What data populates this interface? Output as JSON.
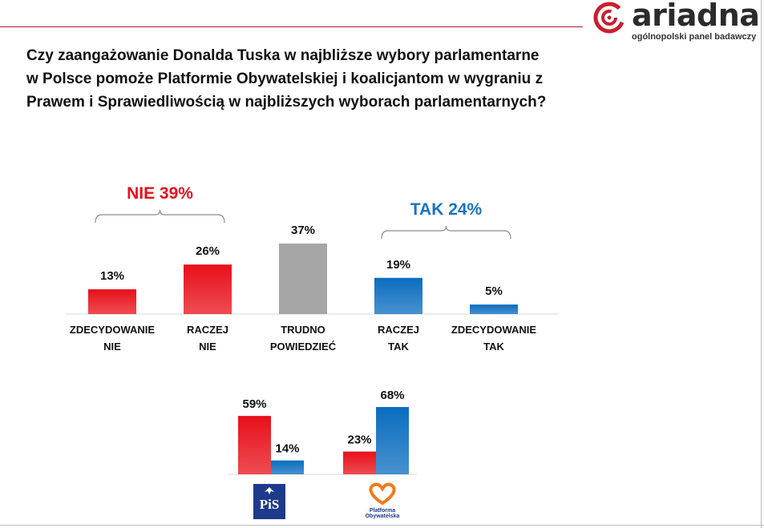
{
  "logo": {
    "name": "ariadna",
    "tagline": "ogólnopolski panel badawczy"
  },
  "title_lines": [
    "Czy zaangażowanie Donalda Tuska w najbliższe wybory parlamentarne",
    "w Polsce pomoże Platformie Obywatelskiej i koalicjantom w wygraniu z",
    "Prawem i Sprawiedliwością w najbliższych wyborach parlamentarnych?"
  ],
  "colors": {
    "red": "#e8101a",
    "gray": "#a6a6a6",
    "blue": "#0b6dbf",
    "nie_label": "#e8101a",
    "tak_label": "#1a73c4"
  },
  "chart_data": [
    {
      "type": "bar",
      "title": "Czy zaangażowanie Donalda Tuska w najbliższe wybory parlamentarne w Polsce pomoże Platformie Obywatelskiej i koalicjantom w wygraniu z Prawem i Sprawiedliwością w najbliższych wyborach parlamentarnych?",
      "categories": [
        [
          "ZDECYDOWANIE",
          "NIE"
        ],
        [
          "RACZEJ",
          "NIE"
        ],
        [
          "TRUDNO",
          "POWIEDZIEĆ"
        ],
        [
          "RACZEJ",
          "TAK"
        ],
        [
          "ZDECYDOWANIE",
          "TAK"
        ]
      ],
      "values": [
        13,
        26,
        37,
        19,
        5
      ],
      "value_labels": [
        "13%",
        "26%",
        "37%",
        "19%",
        "5%"
      ],
      "bar_colors": [
        "red",
        "red",
        "gray",
        "blue",
        "blue"
      ],
      "ylim": [
        0,
        37
      ],
      "groups": [
        {
          "label": "NIE 39%",
          "from": 0,
          "to": 1,
          "color": "nie_label"
        },
        {
          "label": "TAK 24%",
          "from": 3,
          "to": 4,
          "color": "tak_label"
        }
      ]
    },
    {
      "type": "bar",
      "groups": [
        "PiS",
        "Platforma Obywatelska"
      ],
      "series": [
        {
          "name": "NIE",
          "color": "red",
          "values": [
            59,
            23
          ],
          "labels": [
            "59%",
            "23%"
          ]
        },
        {
          "name": "TAK",
          "color": "blue",
          "values": [
            14,
            68
          ],
          "labels": [
            "14%",
            "68%"
          ]
        }
      ],
      "ylim": [
        0,
        68
      ]
    }
  ],
  "party_logos": {
    "pis": "PiS",
    "po": "Platforma Obywatelska"
  }
}
